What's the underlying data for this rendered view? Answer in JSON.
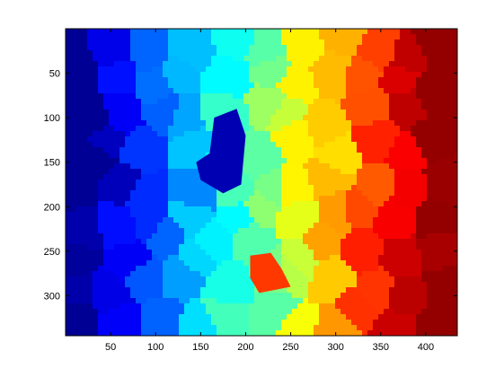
{
  "chart_data": {
    "type": "heatmap",
    "title": "",
    "xlabel": "",
    "ylabel": "",
    "xlim": [
      0,
      435
    ],
    "ylim": [
      345,
      0
    ],
    "y_direction": "top-down",
    "grid": false,
    "legend": "none",
    "colormap": "jet",
    "xticks": [
      50,
      100,
      150,
      200,
      250,
      300,
      350,
      400
    ],
    "yticks": [
      50,
      100,
      150,
      200,
      250,
      300
    ],
    "xtick_labels": [
      "50",
      "100",
      "150",
      "200",
      "250",
      "300",
      "350",
      "400"
    ],
    "ytick_labels": [
      "50",
      "100",
      "150",
      "200",
      "250",
      "300"
    ],
    "description_of_regions": "superpixel segmentation colored left-to-right from dark blue to dark red",
    "cell_value_range": [
      0,
      1
    ]
  },
  "colors": {
    "background": "#ffffff",
    "axes_edge": "#000000",
    "jet_low": "#00008f",
    "jet_high": "#800000"
  }
}
